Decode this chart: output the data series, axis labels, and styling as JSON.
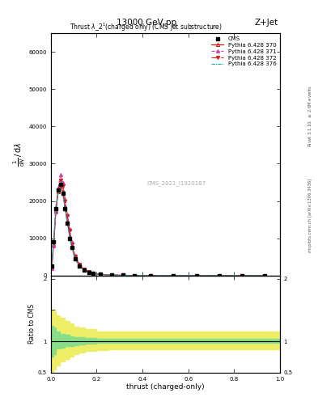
{
  "title_top": "13000 GeV pp",
  "title_right": "Z+Jet",
  "plot_title": "Thrust $\\lambda\\_2^1$(charged only) (CMS jet substructure)",
  "ylabel_main": "$\\frac{1}{\\mathrm{d}N}\\,/\\,\\mathrm{d}\\lambda$",
  "ylabel_ratio": "Ratio to CMS",
  "xlabel": "thrust (charged-only)",
  "right_label_top": "Rivet 3.1.10, $\\geq$ 2.6M events",
  "right_label_bottom": "mcplots.cern.ch [arXiv:1306.3436]",
  "watermark": "CMS_2021_I1920187",
  "ylim_main": [
    0,
    65000
  ],
  "ylim_ratio": [
    0.5,
    2.05
  ],
  "xlim": [
    0.0,
    1.0
  ],
  "cms_color": "#000000",
  "py370_color": "#dd0000",
  "py371_color": "#cc44aa",
  "py372_color": "#cc2222",
  "py376_color": "#00bbbb",
  "green_band_color": "#88dd88",
  "yellow_band_color": "#eeee66",
  "x_data": [
    0.004,
    0.012,
    0.022,
    0.032,
    0.042,
    0.052,
    0.062,
    0.072,
    0.082,
    0.092,
    0.105,
    0.125,
    0.145,
    0.165,
    0.185,
    0.215,
    0.265,
    0.315,
    0.365,
    0.435,
    0.535,
    0.635,
    0.735,
    0.835,
    0.935
  ],
  "cms_y": [
    2500,
    9000,
    18000,
    23000,
    24500,
    22000,
    18000,
    14000,
    10000,
    7500,
    4500,
    2500,
    1500,
    900,
    550,
    300,
    150,
    80,
    40,
    15,
    5,
    2,
    1,
    0.5,
    0.2
  ],
  "py370_y": [
    2200,
    8500,
    17500,
    22500,
    24000,
    22500,
    18500,
    14500,
    10500,
    7800,
    4700,
    2650,
    1600,
    950,
    580,
    310,
    155,
    82,
    41,
    15.5,
    5,
    2,
    1,
    0.5,
    0.2
  ],
  "py371_y": [
    2000,
    8000,
    17000,
    23500,
    27000,
    25000,
    20500,
    16500,
    12500,
    9000,
    5400,
    3000,
    1800,
    1080,
    650,
    350,
    175,
    92,
    46,
    17,
    5.5,
    2.2,
    1.1,
    0.5,
    0.2
  ],
  "py372_y": [
    2300,
    8800,
    18000,
    23000,
    25500,
    24000,
    20000,
    16000,
    12000,
    8500,
    5200,
    2900,
    1750,
    1050,
    630,
    340,
    170,
    90,
    45,
    17,
    5.2,
    2.1,
    1.0,
    0.5,
    0.2
  ],
  "py376_y": [
    2800,
    10000,
    19000,
    22000,
    23500,
    21500,
    17800,
    13800,
    10200,
    7300,
    4400,
    2450,
    1480,
    880,
    540,
    295,
    148,
    79,
    40,
    14.5,
    4.7,
    1.9,
    0.95,
    0.45,
    0.2
  ],
  "ratio_x": [
    0.0,
    0.01,
    0.02,
    0.04,
    0.06,
    0.08,
    0.1,
    0.12,
    0.15,
    0.2,
    0.25,
    0.3,
    0.4,
    0.5,
    0.7,
    1.0
  ],
  "ratio_green_low": [
    0.75,
    0.8,
    0.88,
    0.9,
    0.92,
    0.93,
    0.94,
    0.95,
    0.96,
    0.97,
    0.97,
    0.97,
    0.97,
    0.97,
    0.97,
    0.97
  ],
  "ratio_green_high": [
    1.25,
    1.22,
    1.15,
    1.12,
    1.1,
    1.08,
    1.07,
    1.06,
    1.05,
    1.04,
    1.04,
    1.04,
    1.04,
    1.04,
    1.04,
    1.04
  ],
  "ratio_yellow_low": [
    0.5,
    0.55,
    0.62,
    0.68,
    0.72,
    0.76,
    0.8,
    0.82,
    0.84,
    0.86,
    0.87,
    0.87,
    0.87,
    0.87,
    0.87,
    0.87
  ],
  "ratio_yellow_high": [
    1.5,
    1.48,
    1.42,
    1.38,
    1.33,
    1.28,
    1.24,
    1.22,
    1.19,
    1.16,
    1.15,
    1.15,
    1.15,
    1.15,
    1.15,
    1.15
  ]
}
